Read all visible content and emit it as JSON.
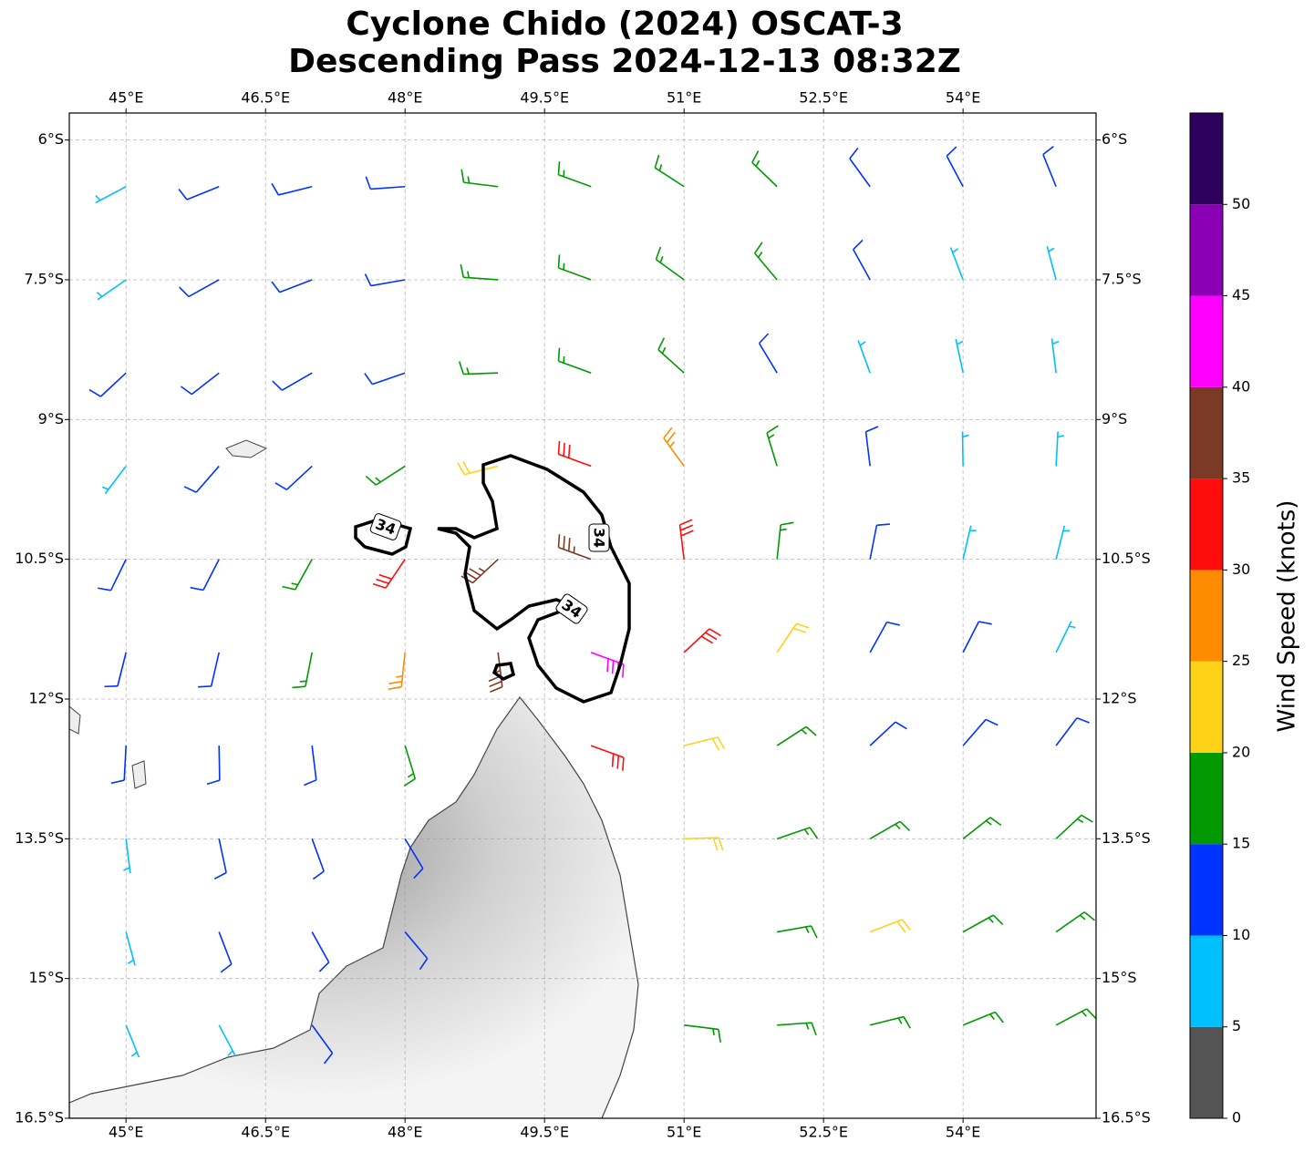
{
  "chart_data": {
    "type": "wind-barbs",
    "title": "Cyclone Chido (2024) OSCAT-3",
    "subtitle": "Descending Pass 2024-12-13 08:32Z",
    "xlim": [
      44.39,
      55.43
    ],
    "ylim": [
      -16.5,
      -5.71
    ],
    "xticks": [
      {
        "value": 45,
        "label": "45°E"
      },
      {
        "value": 46.5,
        "label": "46.5°E"
      },
      {
        "value": 48,
        "label": "48°E"
      },
      {
        "value": 49.5,
        "label": "49.5°E"
      },
      {
        "value": 51,
        "label": "51°E"
      },
      {
        "value": 52.5,
        "label": "52.5°E"
      },
      {
        "value": 54,
        "label": "54°E"
      }
    ],
    "yticks": [
      {
        "value": -6,
        "label": "6°S"
      },
      {
        "value": -7.5,
        "label": "7.5°S"
      },
      {
        "value": -9,
        "label": "9°S"
      },
      {
        "value": -10.5,
        "label": "10.5°S"
      },
      {
        "value": -12,
        "label": "12°S"
      },
      {
        "value": -13.5,
        "label": "13.5°S"
      },
      {
        "value": -15,
        "label": "15°S"
      },
      {
        "value": -16.5,
        "label": "16.5°S"
      }
    ],
    "grid": true,
    "contour": {
      "level": 34
    },
    "wind": {
      "lons": [
        45,
        46,
        47,
        48,
        49,
        50,
        51,
        52,
        53,
        54,
        55
      ],
      "lats": [
        -6.5,
        -7.5,
        -8.5,
        -9.5,
        -10.5,
        -11.5,
        -12.5,
        -13.5,
        -14.5,
        -15.5
      ],
      "speed": [
        [
          9,
          11,
          12,
          13,
          15,
          17,
          17,
          16,
          13,
          12,
          10
        ],
        [
          8,
          11,
          12,
          14,
          16,
          17,
          18,
          15,
          12,
          9,
          8
        ],
        [
          11,
          12,
          13,
          14,
          16,
          18,
          17,
          13,
          9,
          8,
          8
        ],
        [
          8,
          12,
          13,
          15,
          24,
          32,
          27,
          18,
          12,
          9,
          8
        ],
        [
          12,
          12,
          16,
          33,
          37,
          39,
          32,
          18,
          12,
          9,
          8
        ],
        [
          12,
          13,
          18,
          26,
          36,
          43,
          33,
          20,
          13,
          10,
          9
        ],
        [
          11,
          12,
          14,
          17,
          null,
          30,
          24,
          19,
          14,
          12,
          12
        ],
        [
          9,
          11,
          12,
          13,
          null,
          null,
          22,
          19,
          17,
          16,
          16
        ],
        [
          8,
          10,
          13,
          14,
          null,
          null,
          null,
          19,
          20,
          17,
          17
        ],
        [
          8,
          9,
          12,
          null,
          null,
          null,
          16,
          18,
          17,
          17,
          17
        ]
      ],
      "direction": [
        [
          62,
          68,
          76,
          86,
          97,
          110,
          123,
          134,
          144,
          152,
          158
        ],
        [
          55,
          61,
          69,
          80,
          94,
          110,
          126,
          140,
          151,
          159,
          165
        ],
        [
          47,
          52,
          60,
          71,
          88,
          110,
          132,
          149,
          160,
          168,
          173
        ],
        [
          37,
          41,
          47,
          57,
          76,
          110,
          144,
          163,
          173,
          179,
          183
        ],
        [
          26,
          27,
          29,
          34,
          47,
          110,
          173,
          186,
          191,
          193,
          194
        ],
        [
          14,
          13,
          11,
          6,
          353,
          290,
          227,
          214,
          209,
          207,
          206
        ],
        [
          3,
          359,
          353,
          343,
          324,
          290,
          256,
          237,
          227,
          221,
          217
        ],
        [
          353,
          348,
          340,
          329,
          312,
          290,
          268,
          251,
          240,
          232,
          227
        ],
        [
          345,
          339,
          331,
          320,
          306,
          290,
          274,
          260,
          249,
          241,
          235
        ],
        [
          338,
          332,
          324,
          314,
          303,
          290,
          277,
          266,
          256,
          248,
          242
        ]
      ]
    },
    "colorbar": {
      "label": "Wind Speed (knots)",
      "bounds": [
        0,
        5,
        10,
        15,
        20,
        25,
        30,
        35,
        40,
        45,
        50,
        55
      ],
      "colors": [
        "#555555",
        "#00bfff",
        "#0033ff",
        "#009900",
        "#ffd21a",
        "#ff8c00",
        "#ff0d0d",
        "#7b3a26",
        "#ff00ff",
        "#8b00b5",
        "#2e005e"
      ],
      "ticks": [
        0,
        5,
        10,
        15,
        20,
        25,
        30,
        35,
        40,
        45,
        50
      ]
    }
  }
}
